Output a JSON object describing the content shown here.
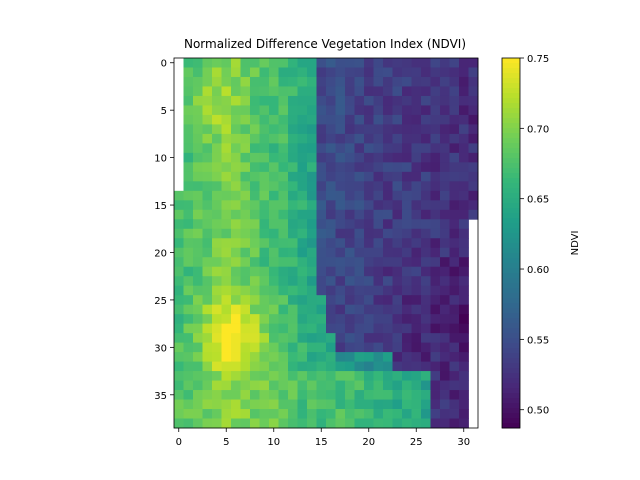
{
  "chart_data": {
    "type": "heatmap",
    "title": "Normalized Difference Vegetation Index (NDVI)",
    "xlabel": "",
    "ylabel": "",
    "colorbar_label": "NDVI",
    "colormap": "viridis",
    "color_range": [
      0.487,
      0.75
    ],
    "grid_size": {
      "rows": 39,
      "cols": 32
    },
    "x_ticks": [
      0,
      5,
      10,
      15,
      20,
      25,
      30
    ],
    "y_ticks": [
      0,
      5,
      10,
      15,
      20,
      25,
      30,
      35
    ],
    "colorbar_ticks": [
      0.5,
      0.55,
      0.6,
      0.65,
      0.7,
      0.75
    ],
    "colorbar_tick_labels": [
      "0.50",
      "0.55",
      "0.60",
      "0.65",
      "0.70",
      "0.75"
    ],
    "description_of_values": "Left columns (0-14) high NDVI ~0.65-0.74 (yellow-green, brightest near x 3-8, y 26-33); right columns (16-31) low NDVI ~0.50-0.58 (purple-blue); bottom rows 33-38 high across x 0-25.",
    "missing_cells": "column 0 rows 0-13 and column 31 rows 17-38 are blank",
    "grid": false
  },
  "axes": {
    "x_tick_labels": [
      "0",
      "5",
      "10",
      "15",
      "20",
      "25",
      "30"
    ],
    "y_tick_labels": [
      "0",
      "5",
      "10",
      "15",
      "20",
      "25",
      "30",
      "35"
    ]
  }
}
